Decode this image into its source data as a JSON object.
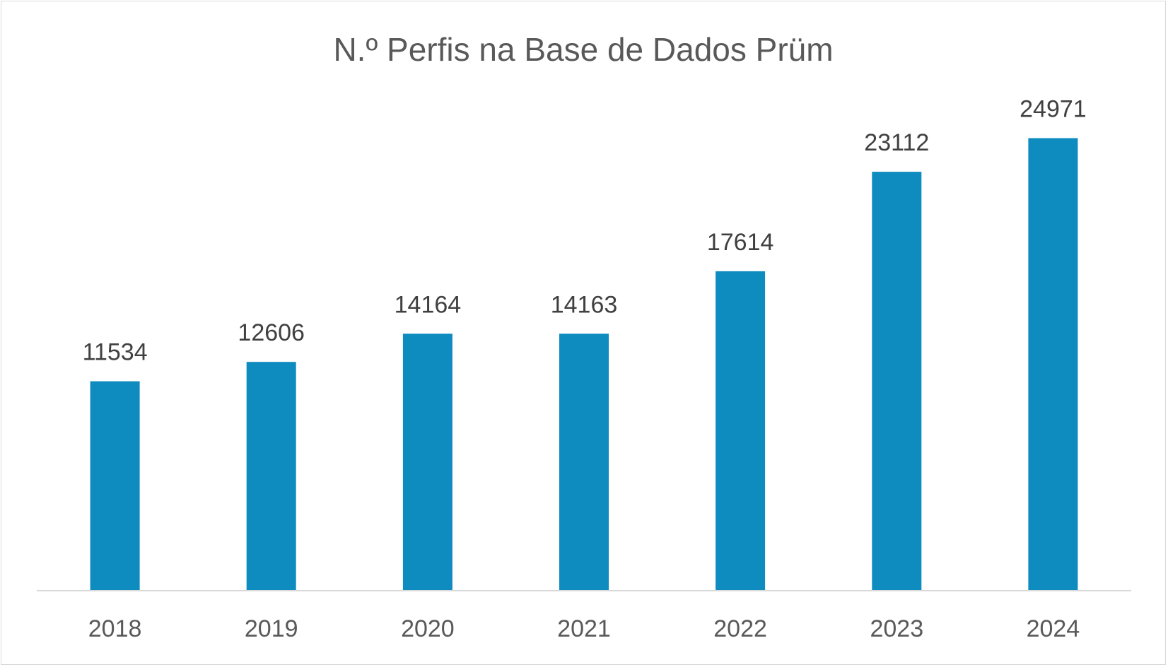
{
  "chart_data": {
    "type": "bar",
    "title": "N.º Perfis na Base de Dados Prüm",
    "categories": [
      "2018",
      "2019",
      "2020",
      "2021",
      "2022",
      "2023",
      "2024"
    ],
    "series": [
      {
        "values": [
          11534,
          12606,
          14164,
          14163,
          17614,
          23112,
          24971
        ]
      }
    ],
    "data_labels": [
      "11534",
      "12606",
      "14164",
      "14163",
      "17614",
      "23112",
      "24971"
    ],
    "xlabel": "",
    "ylabel": "",
    "ylim": [
      0,
      25000
    ],
    "grid": false,
    "legend": "none",
    "colors": {
      "bar": "#0e8bbf",
      "axis": "#d9d9d9",
      "title": "#595959",
      "labels": "#404040"
    }
  }
}
